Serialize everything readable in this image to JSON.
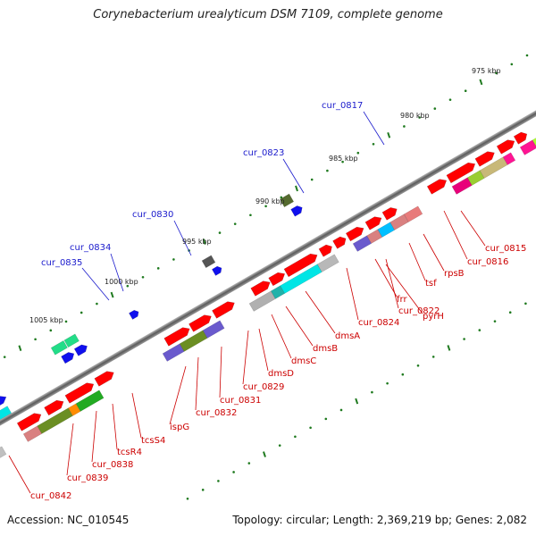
{
  "title": "Corynebacterium urealyticum DSM 7109, complete genome",
  "footer": {
    "accession": "Accession: NC_010545",
    "summary": "Topology: circular; Length: 2,369,219 bp; Genes: 2,082"
  },
  "scale_labels": [
    "975 kbp",
    "980 kbp",
    "985 kbp",
    "990 kbp",
    "995 kbp",
    "1000 kbp",
    "1005 kbp"
  ],
  "top_gene_labels": [
    "cur_0817",
    "cur_0823",
    "cur_0830",
    "cur_0834",
    "cur_0835"
  ],
  "bottom_gene_labels": [
    "cur_0815",
    "cur_0816",
    "rpsB",
    "tsf",
    "pyrH",
    "frr",
    "cur_0822",
    "cur_0824",
    "dmsA",
    "dmsB",
    "dmsC",
    "dmsD",
    "cur_0829",
    "cur_0831",
    "cur_0832",
    "ispG",
    "tcsS4",
    "tcsR4",
    "cur_0838",
    "cur_0839",
    "cur_0842"
  ],
  "colors": {
    "backbone": "#7a7a7a",
    "gene": "#ff0000",
    "top_label": "#1a1acc",
    "bottom_label": "#cc0000",
    "tick": "#1f7a1f"
  }
}
